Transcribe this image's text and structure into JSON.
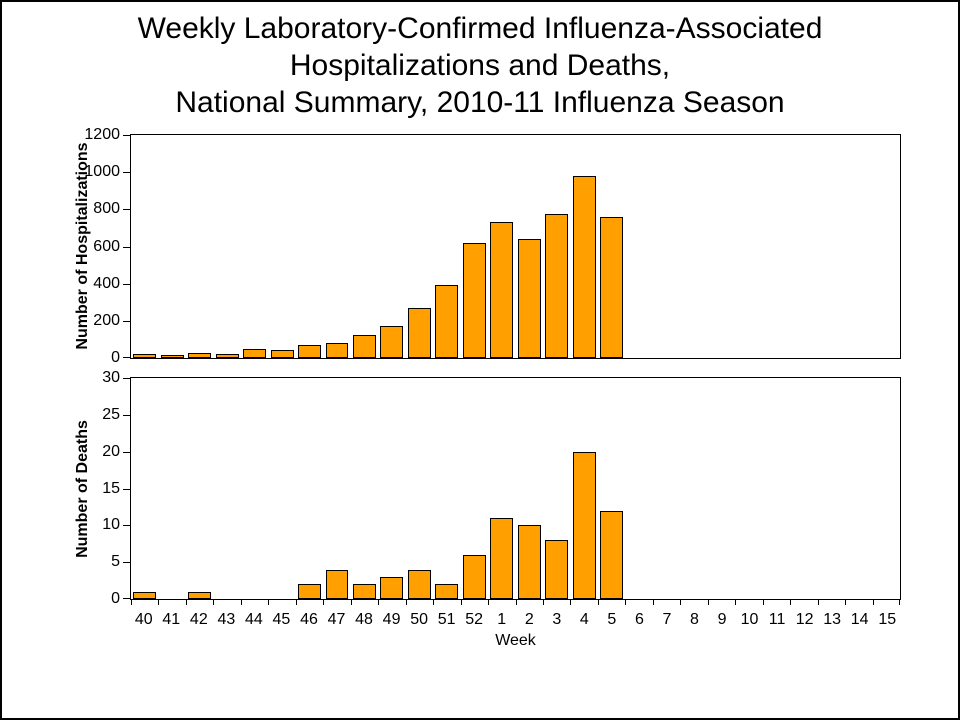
{
  "title": {
    "line1": "Weekly Laboratory-Confirmed Influenza-Associated",
    "line2": "Hospitalizations and Deaths,",
    "line3": "National Summary, 2010-11 Influenza Season"
  },
  "x_axis_title": "Week",
  "colors": {
    "bar_fill": "#FFA000",
    "bar_border": "#000000",
    "axis": "#000000",
    "background": "#FFFFFF",
    "text": "#000000"
  },
  "chart_data": [
    {
      "type": "bar",
      "title": "Weekly Laboratory-Confirmed Influenza-Associated Hospitalizations and Deaths, National Summary, 2010-11 Influenza Season",
      "ylabel": "Number of Hospitalizations",
      "xlabel": "Week",
      "ylim": [
        0,
        1200
      ],
      "yticks": [
        0,
        200,
        400,
        600,
        800,
        1000,
        1200
      ],
      "grid": false,
      "legend": false,
      "show_x_ticks": false,
      "categories": [
        "40",
        "41",
        "42",
        "43",
        "44",
        "45",
        "46",
        "47",
        "48",
        "49",
        "50",
        "51",
        "52",
        "1",
        "2",
        "3",
        "4",
        "5",
        "6",
        "7",
        "8",
        "9",
        "10",
        "11",
        "12",
        "13",
        "14",
        "15"
      ],
      "values": [
        22,
        14,
        28,
        20,
        48,
        42,
        71,
        80,
        122,
        170,
        267,
        394,
        617,
        733,
        638,
        777,
        980,
        759,
        0,
        0,
        0,
        0,
        0,
        0,
        0,
        0,
        0,
        0
      ]
    },
    {
      "type": "bar",
      "title": "",
      "ylabel": "Number of Deaths",
      "xlabel": "Week",
      "ylim": [
        0,
        30
      ],
      "yticks": [
        0,
        5,
        10,
        15,
        20,
        25,
        30
      ],
      "grid": false,
      "legend": false,
      "show_x_ticks": true,
      "categories": [
        "40",
        "41",
        "42",
        "43",
        "44",
        "45",
        "46",
        "47",
        "48",
        "49",
        "50",
        "51",
        "52",
        "1",
        "2",
        "3",
        "4",
        "5",
        "6",
        "7",
        "8",
        "9",
        "10",
        "11",
        "12",
        "13",
        "14",
        "15"
      ],
      "values": [
        1,
        0,
        1,
        0,
        0,
        0,
        2,
        4,
        2,
        3,
        4,
        2,
        6,
        11,
        10,
        8,
        20,
        12,
        0,
        0,
        0,
        0,
        0,
        0,
        0,
        0,
        0,
        0
      ]
    }
  ]
}
